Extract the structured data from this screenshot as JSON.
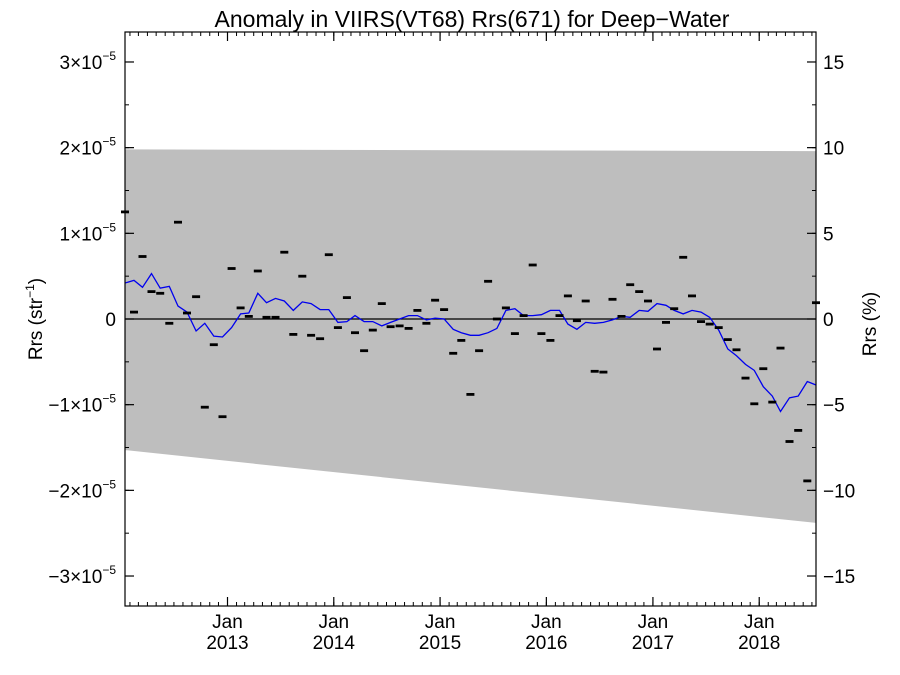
{
  "chart_data": {
    "type": "line",
    "title": "Anomaly in VIIRS(VT68) Rrs(671) for Deep−Water",
    "ylabel_left": {
      "base": "Rrs (str",
      "sup": "−1",
      "tail": ")"
    },
    "ylabel_right": "Rrs (%)",
    "xlim": [
      "2012-01-15",
      "2018-07-15"
    ],
    "ylim": [
      -3.35e-05,
      3.35e-05
    ],
    "ylim_right": [
      -16.75,
      16.75
    ],
    "x_ticks": [
      {
        "date": "2013-01-01",
        "month": "Jan",
        "year": "2013"
      },
      {
        "date": "2014-01-01",
        "month": "Jan",
        "year": "2014"
      },
      {
        "date": "2015-01-01",
        "month": "Jan",
        "year": "2015"
      },
      {
        "date": "2016-01-01",
        "month": "Jan",
        "year": "2016"
      },
      {
        "date": "2017-01-01",
        "month": "Jan",
        "year": "2017"
      },
      {
        "date": "2018-01-01",
        "month": "Jan",
        "year": "2018"
      }
    ],
    "y_ticks_left": [
      {
        "value": 3e-05,
        "mant": "3×10",
        "exp": "−5"
      },
      {
        "value": 2e-05,
        "mant": "2×10",
        "exp": "−5"
      },
      {
        "value": 1e-05,
        "mant": "1×10",
        "exp": "−5"
      },
      {
        "value": 0,
        "mant": "0",
        "exp": ""
      },
      {
        "value": -1e-05,
        "mant": "−1×10",
        "exp": "−5"
      },
      {
        "value": -2e-05,
        "mant": "−2×10",
        "exp": "−5"
      },
      {
        "value": -3e-05,
        "mant": "−3×10",
        "exp": "−5"
      }
    ],
    "y_ticks_right": [
      {
        "value": 15,
        "label": "15"
      },
      {
        "value": 10,
        "label": "10"
      },
      {
        "value": 5,
        "label": "5"
      },
      {
        "value": 0,
        "label": "0"
      },
      {
        "value": -5,
        "label": "−5"
      },
      {
        "value": -10,
        "label": "−10"
      },
      {
        "value": -15,
        "label": "−15"
      }
    ],
    "band": {
      "upper": [
        [
          "2012-01-15",
          1.98e-05
        ],
        [
          "2018-07-15",
          1.96e-05
        ]
      ],
      "lower": [
        [
          "2012-01-15",
          -1.53e-05
        ],
        [
          "2018-07-15",
          -2.38e-05
        ]
      ],
      "color": "#bebebe"
    },
    "reference_line": {
      "y": 0,
      "color": "#000000"
    },
    "series": [
      {
        "kind": "points",
        "color": "#000000",
        "points": [
          [
            "2012-01-15",
            1.25e-05
          ],
          [
            "2012-02-15",
            8e-07
          ],
          [
            "2012-03-15",
            7.3e-06
          ],
          [
            "2012-04-15",
            3.2e-06
          ],
          [
            "2012-05-15",
            3e-06
          ],
          [
            "2012-06-15",
            -5e-07
          ],
          [
            "2012-07-15",
            1.13e-05
          ],
          [
            "2012-08-15",
            7e-07
          ],
          [
            "2012-09-15",
            2.6e-06
          ],
          [
            "2012-10-15",
            -1.03e-05
          ],
          [
            "2012-11-15",
            -3e-06
          ],
          [
            "2012-12-15",
            -1.14e-05
          ],
          [
            "2013-01-15",
            5.9e-06
          ],
          [
            "2013-02-15",
            1.3e-06
          ],
          [
            "2013-03-15",
            3e-07
          ],
          [
            "2013-04-15",
            5.6e-06
          ],
          [
            "2013-05-15",
            2e-07
          ],
          [
            "2013-06-15",
            2e-07
          ],
          [
            "2013-07-15",
            7.8e-06
          ],
          [
            "2013-08-15",
            -1.8e-06
          ],
          [
            "2013-09-15",
            5e-06
          ],
          [
            "2013-10-15",
            -1.9e-06
          ],
          [
            "2013-11-15",
            -2.3e-06
          ],
          [
            "2013-12-15",
            7.5e-06
          ],
          [
            "2014-01-15",
            -1e-06
          ],
          [
            "2014-02-15",
            2.5e-06
          ],
          [
            "2014-03-15",
            -1.6e-06
          ],
          [
            "2014-04-15",
            -3.7e-06
          ],
          [
            "2014-05-15",
            -1.3e-06
          ],
          [
            "2014-06-15",
            1.8e-06
          ],
          [
            "2014-07-15",
            -9e-07
          ],
          [
            "2014-08-15",
            -8e-07
          ],
          [
            "2014-09-15",
            -1.1e-06
          ],
          [
            "2014-10-15",
            1e-06
          ],
          [
            "2014-11-15",
            -5e-07
          ],
          [
            "2014-12-15",
            2.2e-06
          ],
          [
            "2015-01-15",
            1.1e-06
          ],
          [
            "2015-02-15",
            -4e-06
          ],
          [
            "2015-03-15",
            -2.5e-06
          ],
          [
            "2015-04-15",
            -8.8e-06
          ],
          [
            "2015-05-15",
            -3.7e-06
          ],
          [
            "2015-06-15",
            4.4e-06
          ],
          [
            "2015-07-15",
            0.0
          ],
          [
            "2015-08-15",
            1.3e-06
          ],
          [
            "2015-09-15",
            -1.7e-06
          ],
          [
            "2015-10-15",
            4e-07
          ],
          [
            "2015-11-15",
            6.3e-06
          ],
          [
            "2015-12-15",
            -1.7e-06
          ],
          [
            "2016-01-15",
            -2.5e-06
          ],
          [
            "2016-02-15",
            4e-07
          ],
          [
            "2016-03-15",
            2.7e-06
          ],
          [
            "2016-04-15",
            -2e-07
          ],
          [
            "2016-05-15",
            2.1e-06
          ],
          [
            "2016-06-15",
            -6.1e-06
          ],
          [
            "2016-07-15",
            -6.2e-06
          ],
          [
            "2016-08-15",
            2.3e-06
          ],
          [
            "2016-09-15",
            3e-07
          ],
          [
            "2016-10-15",
            4e-06
          ],
          [
            "2016-11-15",
            3.2e-06
          ],
          [
            "2016-12-15",
            2.1e-06
          ],
          [
            "2017-01-15",
            -3.5e-06
          ],
          [
            "2017-02-15",
            -4e-07
          ],
          [
            "2017-03-15",
            1.2e-06
          ],
          [
            "2017-04-15",
            7.2e-06
          ],
          [
            "2017-05-15",
            2.7e-06
          ],
          [
            "2017-06-15",
            -3e-07
          ],
          [
            "2017-07-15",
            -6e-07
          ],
          [
            "2017-08-15",
            -1e-06
          ],
          [
            "2017-09-15",
            -2.4e-06
          ],
          [
            "2017-10-15",
            -3.6e-06
          ],
          [
            "2017-11-15",
            -6.9e-06
          ],
          [
            "2017-12-15",
            -9.9e-06
          ],
          [
            "2018-01-15",
            -5.8e-06
          ],
          [
            "2018-02-15",
            -9.7e-06
          ],
          [
            "2018-03-15",
            -3.4e-06
          ],
          [
            "2018-04-15",
            -1.43e-05
          ],
          [
            "2018-05-15",
            -1.3e-05
          ],
          [
            "2018-06-15",
            -1.89e-05
          ],
          [
            "2018-07-15",
            1.9e-06
          ]
        ]
      },
      {
        "kind": "line",
        "color": "#0000ee",
        "points": [
          [
            "2012-01-15",
            4.2e-06
          ],
          [
            "2012-02-15",
            4.5e-06
          ],
          [
            "2012-03-15",
            3.7e-06
          ],
          [
            "2012-04-15",
            5.3e-06
          ],
          [
            "2012-05-15",
            3.6e-06
          ],
          [
            "2012-06-15",
            3.8e-06
          ],
          [
            "2012-07-15",
            1.5e-06
          ],
          [
            "2012-08-15",
            8e-07
          ],
          [
            "2012-09-15",
            -1.4e-06
          ],
          [
            "2012-10-15",
            -5e-07
          ],
          [
            "2012-11-15",
            -2e-06
          ],
          [
            "2012-12-15",
            -2.1e-06
          ],
          [
            "2013-01-15",
            -1e-06
          ],
          [
            "2013-02-15",
            6e-07
          ],
          [
            "2013-03-15",
            7e-07
          ],
          [
            "2013-04-15",
            3e-06
          ],
          [
            "2013-05-15",
            1.9e-06
          ],
          [
            "2013-06-15",
            2.4e-06
          ],
          [
            "2013-07-15",
            2.1e-06
          ],
          [
            "2013-08-15",
            1e-06
          ],
          [
            "2013-09-15",
            2e-06
          ],
          [
            "2013-10-15",
            1.8e-06
          ],
          [
            "2013-11-15",
            1.1e-06
          ],
          [
            "2013-12-15",
            1.1e-06
          ],
          [
            "2014-01-15",
            -4e-07
          ],
          [
            "2014-02-15",
            -3e-07
          ],
          [
            "2014-03-15",
            4e-07
          ],
          [
            "2014-04-15",
            -3e-07
          ],
          [
            "2014-05-15",
            -3e-07
          ],
          [
            "2014-06-15",
            -8e-07
          ],
          [
            "2014-07-15",
            -4e-07
          ],
          [
            "2014-08-15",
            0.0
          ],
          [
            "2014-09-15",
            4e-07
          ],
          [
            "2014-10-15",
            4e-07
          ],
          [
            "2014-11-15",
            -1e-07
          ],
          [
            "2014-12-15",
            1e-07
          ],
          [
            "2015-01-15",
            0.0
          ],
          [
            "2015-02-15",
            -1.2e-06
          ],
          [
            "2015-03-15",
            -1.6e-06
          ],
          [
            "2015-04-15",
            -1.9e-06
          ],
          [
            "2015-05-15",
            -1.9e-06
          ],
          [
            "2015-06-15",
            -1.6e-06
          ],
          [
            "2015-07-15",
            -1.1e-06
          ],
          [
            "2015-08-15",
            1e-06
          ],
          [
            "2015-09-15",
            1.2e-06
          ],
          [
            "2015-10-15",
            4e-07
          ],
          [
            "2015-11-15",
            4e-07
          ],
          [
            "2015-12-15",
            5e-07
          ],
          [
            "2016-01-15",
            1e-06
          ],
          [
            "2016-02-15",
            1e-06
          ],
          [
            "2016-03-15",
            -6e-07
          ],
          [
            "2016-04-15",
            -1.2e-06
          ],
          [
            "2016-05-15",
            -4e-07
          ],
          [
            "2016-06-15",
            -5e-07
          ],
          [
            "2016-07-15",
            -4e-07
          ],
          [
            "2016-08-15",
            -1e-07
          ],
          [
            "2016-09-15",
            3e-07
          ],
          [
            "2016-10-15",
            2e-07
          ],
          [
            "2016-11-15",
            1e-06
          ],
          [
            "2016-12-15",
            9e-07
          ],
          [
            "2017-01-15",
            1.8e-06
          ],
          [
            "2017-02-15",
            1.6e-06
          ],
          [
            "2017-03-15",
            1e-06
          ],
          [
            "2017-04-15",
            6e-07
          ],
          [
            "2017-05-15",
            1e-06
          ],
          [
            "2017-06-15",
            8e-07
          ],
          [
            "2017-07-15",
            2e-07
          ],
          [
            "2017-08-15",
            -1.3e-06
          ],
          [
            "2017-09-15",
            -3.5e-06
          ],
          [
            "2017-10-15",
            -4.3e-06
          ],
          [
            "2017-11-15",
            -5.3e-06
          ],
          [
            "2017-12-15",
            -6e-06
          ],
          [
            "2018-01-15",
            -7.9e-06
          ],
          [
            "2018-02-15",
            -9e-06
          ],
          [
            "2018-03-15",
            -1.08e-05
          ],
          [
            "2018-04-15",
            -9.2e-06
          ],
          [
            "2018-05-15",
            -9e-06
          ],
          [
            "2018-06-15",
            -7.3e-06
          ],
          [
            "2018-07-15",
            -7.7e-06
          ]
        ]
      }
    ]
  }
}
